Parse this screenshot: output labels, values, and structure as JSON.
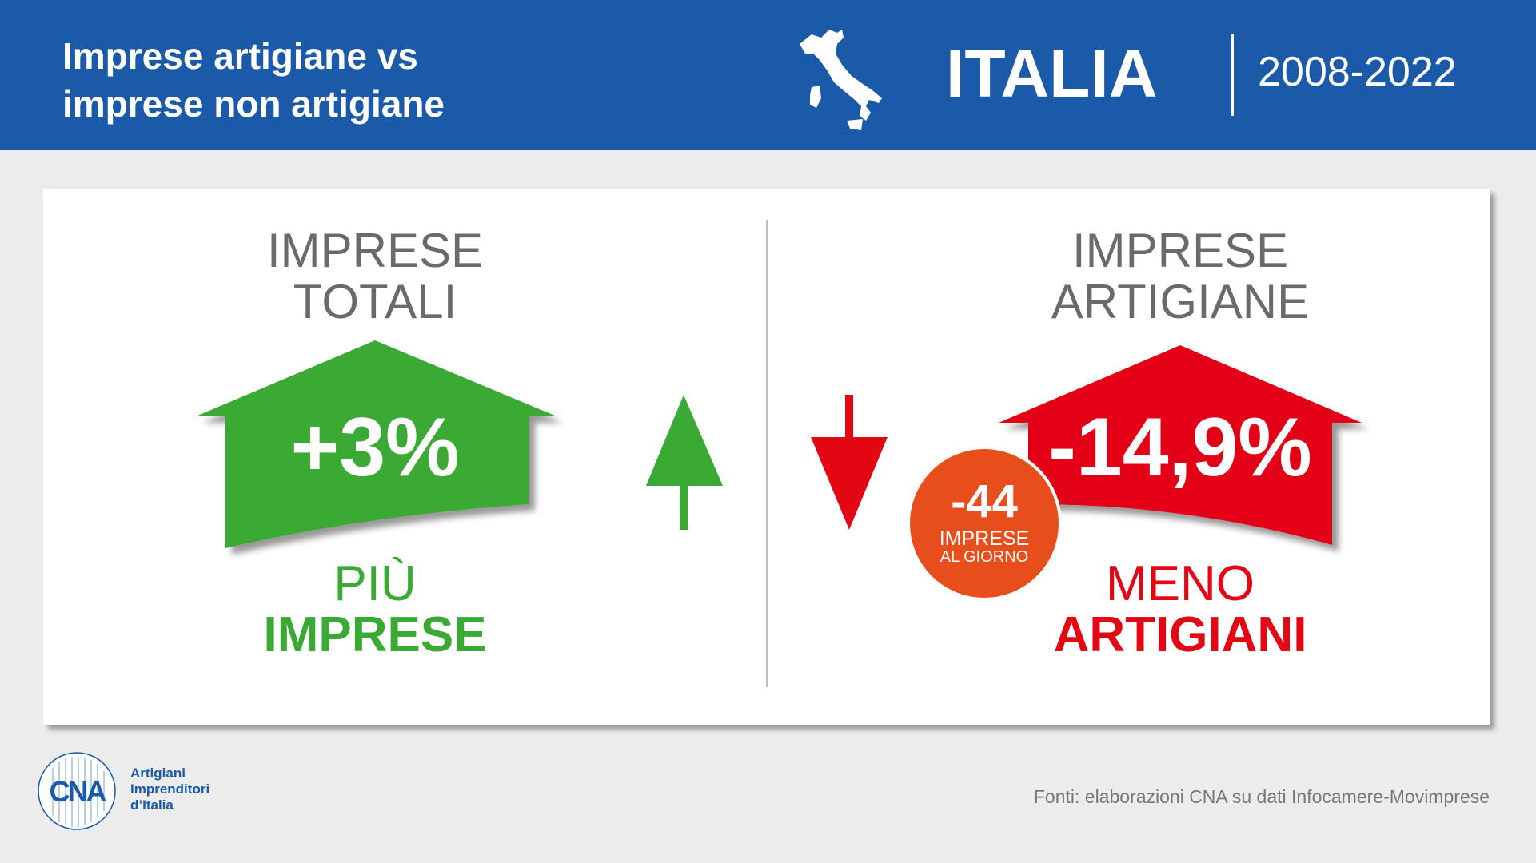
{
  "header": {
    "title_line1": "Imprese artigiane vs",
    "title_line2": "imprese non artigiane",
    "region": "ITALIA",
    "period": "2008-2022",
    "color": "#1a5aa8"
  },
  "left": {
    "title_line1": "IMPRESE",
    "title_line2": "TOTALI",
    "value": "+3%",
    "caption_line1": "PIÙ",
    "caption_line2": "IMPRESE",
    "color": "#3aaa35",
    "trend": "up"
  },
  "right": {
    "title_line1": "IMPRESE",
    "title_line2": "ARTIGIANE",
    "value": "-14,9%",
    "caption_line1": "MENO",
    "caption_line2": "ARTIGIANI",
    "color": "#e30613",
    "trend": "down",
    "badge": {
      "value": "-44",
      "line1": "IMPRESE",
      "line2": "AL GIORNO",
      "color": "#e84e1b"
    }
  },
  "footer": {
    "logo": "CNA",
    "logo_line1": "Artigiani",
    "logo_line2": "Imprenditori",
    "logo_line3": "d’Italia",
    "source": "Fonti: elaborazioni CNA su dati Infocamere-Movimprese"
  }
}
